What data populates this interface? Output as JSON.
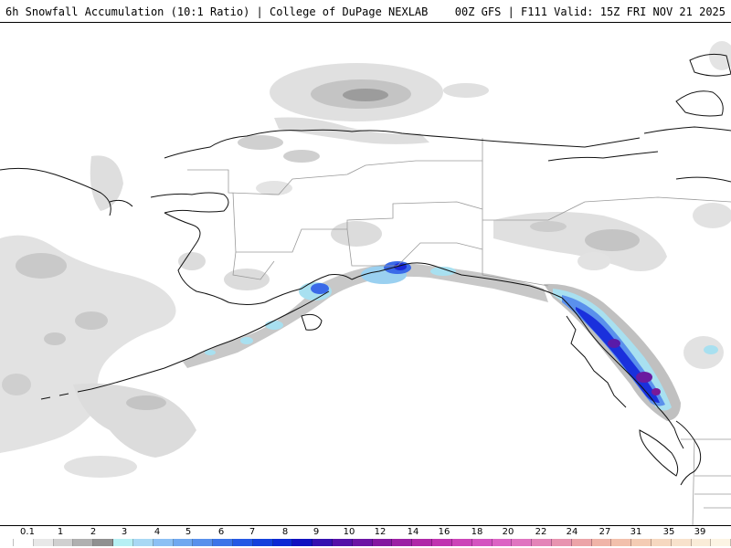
{
  "header": {
    "left_title": "6h Snowfall Accumulation (10:1 Ratio) | College of DuPage NEXLAB",
    "right_title": "00Z GFS | F111 Valid: 15Z FRI NOV 21 2025"
  },
  "map": {
    "region": "Alaska and Gulf of Alaska",
    "snow_colors": {
      "light_gray": "#e2e2e2",
      "mid_gray": "#c3c3c3",
      "dark_gray": "#9a9a9a",
      "cyan": "#a8e8f0",
      "light_blue": "#7ab0f0",
      "blue": "#3566e8",
      "deep_blue": "#1a2ad8",
      "purple": "#7a1a9a"
    },
    "coastline_color": "#000000",
    "border_color": "#999999"
  },
  "legend": {
    "labels": [
      "0.1",
      "1",
      "2",
      "3",
      "4",
      "5",
      "6",
      "7",
      "8",
      "9",
      "10",
      "12",
      "14",
      "16",
      "18",
      "20",
      "22",
      "24",
      "27",
      "31",
      "35",
      "39"
    ],
    "colors": [
      "#ffffff",
      "#e8e8e8",
      "#d0d0d0",
      "#b0b0b0",
      "#909090",
      "#b6f0f4",
      "#a8d8f4",
      "#8cc0f4",
      "#70a8f0",
      "#5890ec",
      "#3c74e8",
      "#2458e4",
      "#1440dc",
      "#0c28d4",
      "#1010c0",
      "#3410b0",
      "#5410a8",
      "#6c14a4",
      "#8418a0",
      "#9c20a4",
      "#b028a8",
      "#c034b0",
      "#cc44b8",
      "#d454c0",
      "#dc64c4",
      "#e074c0",
      "#e484b8",
      "#e894b0",
      "#eca4a8",
      "#f0b4a8",
      "#f2c0ac",
      "#f4ccb4",
      "#f6d8c0",
      "#f8e2cc",
      "#faecd8",
      "#fcf4e4"
    ]
  }
}
